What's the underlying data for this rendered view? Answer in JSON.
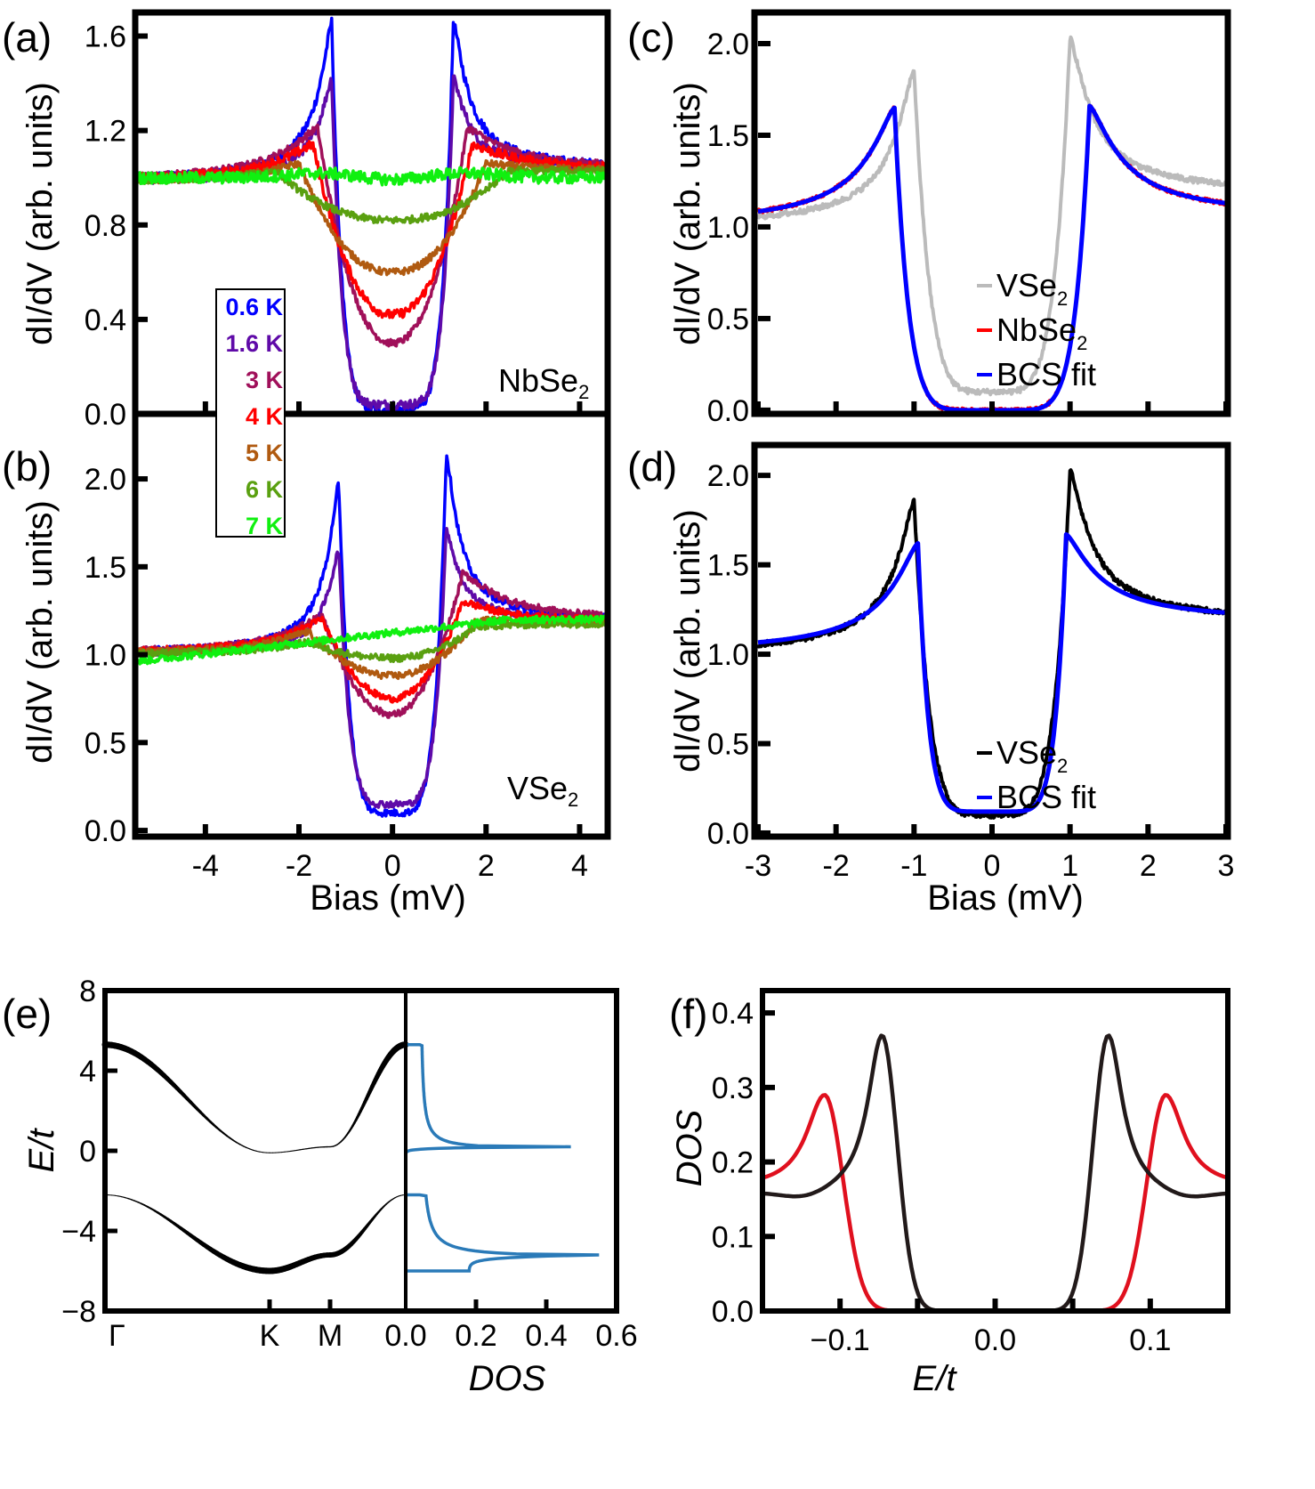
{
  "chart_data": [
    {
      "id": "a",
      "panel_label": "(a)",
      "type": "line",
      "title": "",
      "xlabel": "",
      "ylabel": "dI/dV (arb. units)",
      "xlim": [
        -5.5,
        4.6
      ],
      "ylim": [
        0.0,
        1.7
      ],
      "xticks": [
        -4,
        -2,
        0,
        2,
        4
      ],
      "yticks": [
        0.0,
        0.4,
        0.8,
        1.2,
        1.6
      ],
      "ytick_labels": [
        "0.0",
        "0.4",
        "0.8",
        "1.2",
        "1.6"
      ],
      "annotation": {
        "text": "NbSe",
        "sub": "2"
      },
      "legend": {
        "placement": "left-center",
        "entries": [
          "0.6 K",
          "1.6 K",
          "3 K",
          "4 K",
          "5 K",
          "6 K",
          "7 K"
        ]
      },
      "series": [
        {
          "name": "0.6 K",
          "color": "#0000ff",
          "peak_bias": 1.3,
          "peak_value": 1.66,
          "min_value": 0.02
        },
        {
          "name": "1.6 K",
          "color": "#5f0aa8",
          "peak_bias": 1.3,
          "peak_value": 1.42,
          "min_value": 0.04
        },
        {
          "name": "3 K",
          "color": "#a0105a",
          "peak_bias": 1.6,
          "peak_value": 1.21,
          "min_value": 0.3
        },
        {
          "name": "4 K",
          "color": "#ff0000",
          "peak_bias": 1.7,
          "peak_value": 1.14,
          "min_value": 0.42
        },
        {
          "name": "5 K",
          "color": "#b05a10",
          "peak_bias": 2.0,
          "peak_value": 1.06,
          "min_value": 0.6
        },
        {
          "name": "6 K",
          "color": "#5aa010",
          "peak_bias": 2.5,
          "peak_value": 1.03,
          "min_value": 0.82
        },
        {
          "name": "7 K",
          "color": "#10f010",
          "peak_bias": 0,
          "peak_value": 1.0,
          "min_value": 1.0
        }
      ]
    },
    {
      "id": "b",
      "panel_label": "(b)",
      "type": "line",
      "xlabel": "Bias (mV)",
      "ylabel": "dI/dV (arb. units)",
      "xlim": [
        -5.5,
        4.6
      ],
      "ylim": [
        0.0,
        2.2
      ],
      "xticks": [
        -4,
        -2,
        0,
        2,
        4
      ],
      "xtick_labels": [
        "-4",
        "-2",
        "0",
        "2",
        "4"
      ],
      "yticks": [
        0.0,
        0.5,
        1.0,
        1.5,
        2.0
      ],
      "ytick_labels": [
        "0.0",
        "0.5",
        "1.0",
        "1.5",
        "2.0"
      ],
      "annotation": {
        "text": "VSe",
        "sub": "2"
      },
      "series": [
        {
          "name": "0.6 K",
          "color": "#0000ff",
          "neg_peak": 1.98,
          "pos_peak": 2.14,
          "min_value": 0.1
        },
        {
          "name": "1.6 K",
          "color": "#5f0aa8",
          "neg_peak": 1.6,
          "pos_peak": 1.72,
          "min_value": 0.15
        },
        {
          "name": "3 K",
          "color": "#a0105a",
          "neg_peak": 1.22,
          "pos_peak": 1.46,
          "min_value": 0.66
        },
        {
          "name": "4 K",
          "color": "#ff0000",
          "neg_peak": 1.2,
          "pos_peak": 1.3,
          "min_value": 0.75
        },
        {
          "name": "5 K",
          "color": "#b05a10",
          "neg_peak": 1.13,
          "pos_peak": 1.2,
          "min_value": 0.88
        },
        {
          "name": "6 K",
          "color": "#5aa010",
          "neg_peak": 1.07,
          "pos_peak": 1.16,
          "min_value": 0.98
        },
        {
          "name": "7 K",
          "color": "#10f010",
          "neg_peak": 1.0,
          "pos_peak": 1.27,
          "min_value": 1.05
        }
      ]
    },
    {
      "id": "c",
      "panel_label": "(c)",
      "type": "line",
      "ylabel": "dI/dV (arb. units)",
      "xlim": [
        -3,
        3
      ],
      "ylim": [
        0.0,
        2.2
      ],
      "xticks": [
        -3,
        -2,
        -1,
        0,
        1,
        2,
        3
      ],
      "yticks": [
        0.0,
        0.5,
        1.0,
        1.5,
        2.0
      ],
      "ytick_labels": [
        "0.0",
        "0.5",
        "1.0",
        "1.5",
        "2.0"
      ],
      "legend": {
        "placement": "bottom-right",
        "entries": [
          {
            "text": "VSe",
            "sub": "2",
            "color": "#bbbbbb"
          },
          {
            "text": "NbSe",
            "sub": "2",
            "color": "#ff0000"
          },
          {
            "text": "BCS fit",
            "sub": "",
            "color": "#0000ff"
          }
        ]
      },
      "series": [
        {
          "name": "VSe2",
          "color": "#bbbbbb",
          "neg_peak": [
            -1.0,
            1.86
          ],
          "pos_peak": [
            1.0,
            2.03
          ],
          "min_value": 0.1,
          "right_tail": 1.18
        },
        {
          "name": "NbSe2",
          "color": "#ff0000",
          "neg_peak": [
            -1.25,
            1.65
          ],
          "pos_peak": [
            1.25,
            1.66
          ],
          "min_value": 0.0,
          "right_tail": 1.05
        },
        {
          "name": "BCS fit",
          "color": "#0000ff",
          "neg_peak": [
            -1.25,
            1.65
          ],
          "pos_peak": [
            1.25,
            1.66
          ],
          "min_value": 0.0,
          "right_tail": 1.05
        }
      ]
    },
    {
      "id": "d",
      "panel_label": "(d)",
      "type": "line",
      "xlabel": "Bias (mV)",
      "ylabel": "dI/dV (arb. units)",
      "xlim": [
        -3,
        3
      ],
      "ylim": [
        0.0,
        2.2
      ],
      "xticks": [
        -3,
        -2,
        -1,
        0,
        1,
        2,
        3
      ],
      "xtick_labels": [
        "-3",
        "-2",
        "-1",
        "0",
        "1",
        "2",
        "3"
      ],
      "yticks": [
        0.0,
        0.5,
        1.0,
        1.5,
        2.0
      ],
      "ytick_labels": [
        "0.0",
        "0.5",
        "1.0",
        "1.5",
        "2.0"
      ],
      "legend": {
        "placement": "bottom-right",
        "entries": [
          {
            "text": "VSe",
            "sub": "2",
            "color": "#000000"
          },
          {
            "text": "BCS fit",
            "sub": "",
            "color": "#0000ff"
          }
        ]
      },
      "series": [
        {
          "name": "VSe2",
          "color": "#000000",
          "neg_peak": [
            -1.0,
            1.86
          ],
          "pos_peak": [
            1.0,
            2.03
          ],
          "min_value": 0.1,
          "right_tail": 1.18
        },
        {
          "name": "BCS fit",
          "color": "#0000ff",
          "neg_peak": [
            -0.95,
            1.62
          ],
          "pos_peak": [
            0.95,
            1.67
          ],
          "min_value": 0.12,
          "right_tail": 1.18
        }
      ]
    },
    {
      "id": "e",
      "panel_label": "(e)",
      "type": "line",
      "ylabel": "E/t",
      "ylim": [
        -8,
        8
      ],
      "yticks": [
        -8,
        -4,
        0,
        4,
        8
      ],
      "ytick_labels": [
        "−8",
        "−4",
        "0",
        "4",
        "8"
      ],
      "band_xtick_labels": [
        "Γ",
        "K",
        "M"
      ],
      "dos_xlabel": "DOS",
      "dos_xlim": [
        0.0,
        0.6
      ],
      "dos_xticks": [
        0.0,
        0.2,
        0.4,
        0.6
      ],
      "dos_xtick_labels": [
        "0.0",
        "0.2",
        "0.4",
        "0.6"
      ],
      "bands": [
        {
          "name": "upper band",
          "color": "#000000",
          "gamma": 5.3,
          "K": -0.1,
          "M": 0.2
        },
        {
          "name": "lower band",
          "color": "#000000",
          "gamma": -2.2,
          "K": -6.0,
          "M": -5.2
        }
      ],
      "dos": [
        {
          "name": "upper band DOS",
          "color": "#2a7ab8",
          "top": 5.3,
          "bottom": -0.1,
          "vhs": 0.2,
          "vhs_peak": 0.47
        },
        {
          "name": "lower band DOS",
          "color": "#2a7ab8",
          "top": -2.2,
          "bottom": -6.0,
          "vhs": -5.2,
          "vhs_peak": 0.55
        }
      ]
    },
    {
      "id": "f",
      "panel_label": "(f)",
      "type": "line",
      "xlabel": "E/t",
      "ylabel": "DOS",
      "xlim": [
        -0.15,
        0.15
      ],
      "ylim": [
        0.0,
        0.43
      ],
      "xticks": [
        -0.1,
        -0.05,
        0.0,
        0.05,
        0.1
      ],
      "xtick_labels": [
        "−0.1",
        "",
        "0.0",
        "",
        "0.1"
      ],
      "yticks": [
        0.0,
        0.1,
        0.2,
        0.3,
        0.4
      ],
      "ytick_labels": [
        "0.0",
        "0.1",
        "0.2",
        "0.3",
        "0.4"
      ],
      "series": [
        {
          "name": "larger gap",
          "color": "#e0101e",
          "peak_energy": 0.11,
          "peak_value": 0.29,
          "tail_value": 0.165
        },
        {
          "name": "smaller gap",
          "color": "#221a1a",
          "peak_energy": 0.073,
          "peak_value": 0.37,
          "tail_value": 0.155
        }
      ]
    }
  ]
}
